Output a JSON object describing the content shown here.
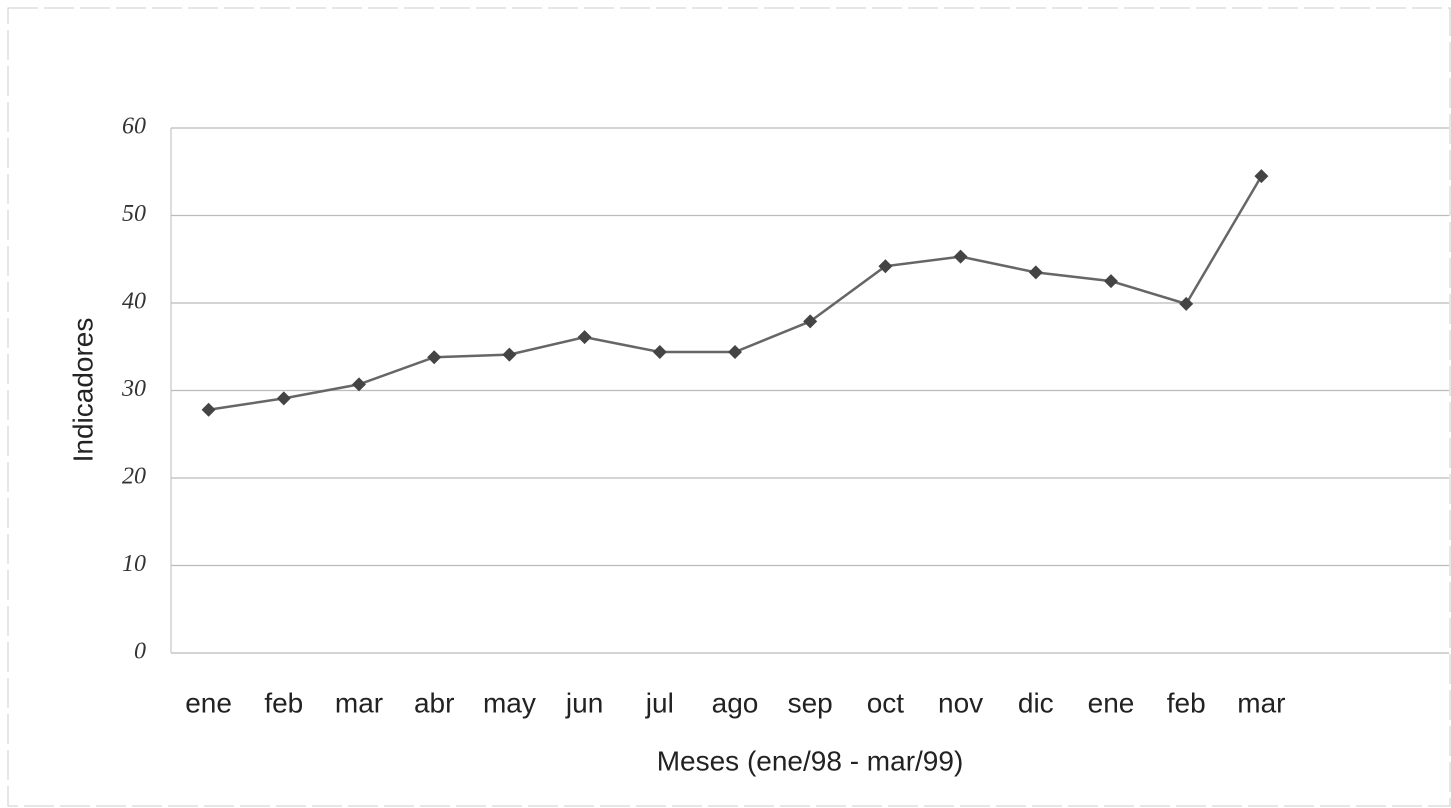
{
  "chart_data": {
    "type": "line",
    "x_label": "Meses (ene/98 - mar/99)",
    "y_label": "Indicadores",
    "categories": [
      "ene",
      "feb",
      "mar",
      "abr",
      "may",
      "jun",
      "jul",
      "ago",
      "sep",
      "oct",
      "nov",
      "dic",
      "ene",
      "feb",
      "mar"
    ],
    "values": [
      27.8,
      29.1,
      30.7,
      33.8,
      34.1,
      36.1,
      34.4,
      34.4,
      37.9,
      44.2,
      45.3,
      43.5,
      42.5,
      39.9,
      54.5
    ],
    "color": "#666666",
    "marker_color": "#444444",
    "ylim": [
      0,
      60
    ],
    "yticks": [
      0,
      10,
      20,
      30,
      40,
      50,
      60
    ],
    "grid": true
  }
}
